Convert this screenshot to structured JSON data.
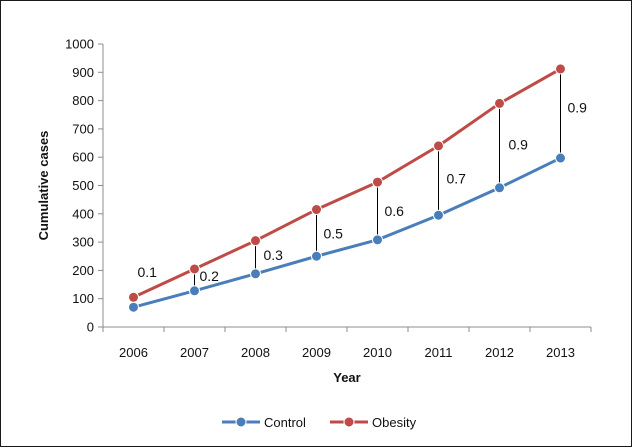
{
  "chart_data": {
    "type": "line",
    "title": "",
    "xlabel": "Year",
    "ylabel": "Cumulative cases",
    "ylim": [
      0,
      1000
    ],
    "yticks": [
      0,
      100,
      200,
      300,
      400,
      500,
      600,
      700,
      800,
      900,
      1000
    ],
    "categories": [
      "2006",
      "2007",
      "2008",
      "2009",
      "2010",
      "2011",
      "2012",
      "2013"
    ],
    "series": [
      {
        "name": "Control",
        "color": "#4a7ebb",
        "values": [
          70,
          128,
          188,
          250,
          308,
          395,
          492,
          597
        ]
      },
      {
        "name": "Obesity",
        "color": "#be4b48",
        "values": [
          105,
          205,
          305,
          415,
          512,
          640,
          790,
          912
        ]
      }
    ],
    "annotations": [
      "0.1",
      "0.2",
      "0.3",
      "0.5",
      "0.6",
      "0.7",
      "0.9",
      "0.9"
    ],
    "grid": false,
    "legend_position": "bottom"
  }
}
